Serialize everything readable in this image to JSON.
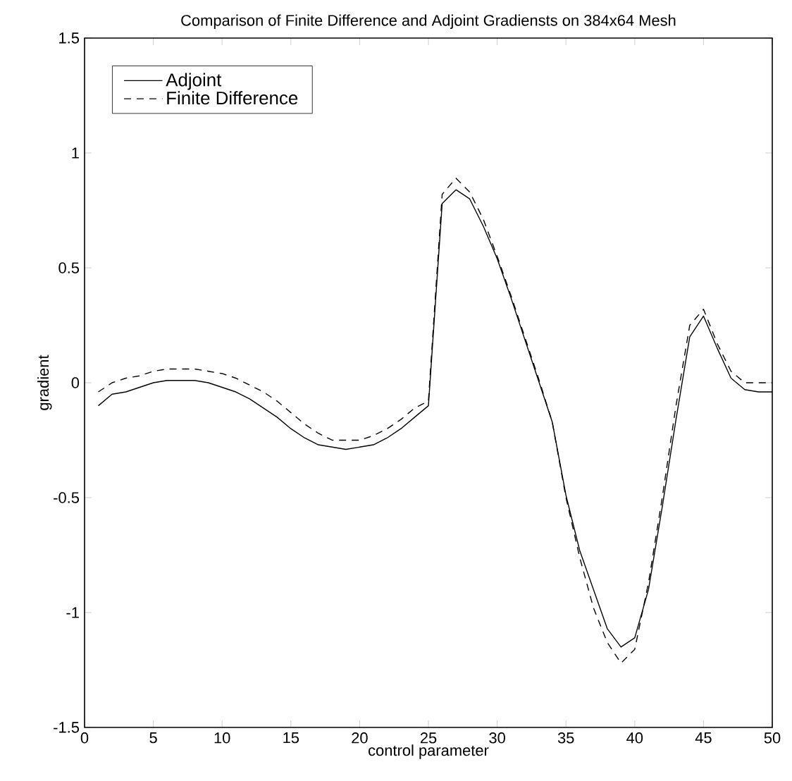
{
  "chart_data": {
    "type": "line",
    "title": "Comparison of Finite Difference and Adjoint Gradiensts on 384x64 Mesh",
    "xlabel": "control parameter",
    "ylabel": "gradient",
    "x": [
      1,
      2,
      3,
      4,
      5,
      6,
      7,
      8,
      9,
      10,
      11,
      12,
      13,
      14,
      15,
      16,
      17,
      18,
      19,
      20,
      21,
      22,
      23,
      24,
      25,
      26,
      27,
      28,
      29,
      30,
      31,
      32,
      33,
      34,
      35,
      36,
      37,
      38,
      39,
      40,
      41,
      42,
      43,
      44,
      45,
      46,
      47,
      48,
      49,
      50
    ],
    "series": [
      {
        "name": "Adjoint",
        "color": "#000000",
        "line_style": "solid",
        "values": [
          -0.1,
          -0.05,
          -0.04,
          -0.02,
          0,
          0.01,
          0.01,
          0.01,
          0,
          -0.02,
          -0.04,
          -0.07,
          -0.11,
          -0.15,
          -0.2,
          -0.24,
          -0.27,
          -0.28,
          -0.29,
          -0.28,
          -0.27,
          -0.24,
          -0.2,
          -0.15,
          -0.1,
          0.78,
          0.84,
          0.8,
          0.68,
          0.54,
          0.37,
          0.19,
          0.01,
          -0.17,
          -0.49,
          -0.73,
          -0.9,
          -1.07,
          -1.15,
          -1.11,
          -0.9,
          -0.54,
          -0.16,
          0.2,
          0.29,
          0.15,
          0.02,
          -0.03,
          -0.04,
          -0.04
        ]
      },
      {
        "name": "Finite Difference",
        "color": "#000000",
        "line_style": "dashed",
        "values": [
          -0.04,
          0,
          0.02,
          0.03,
          0.05,
          0.06,
          0.06,
          0.06,
          0.05,
          0.04,
          0.02,
          -0.01,
          -0.04,
          -0.08,
          -0.13,
          -0.18,
          -0.22,
          -0.25,
          -0.25,
          -0.25,
          -0.23,
          -0.2,
          -0.16,
          -0.11,
          -0.08,
          0.82,
          0.89,
          0.83,
          0.71,
          0.55,
          0.38,
          0.2,
          0.02,
          -0.17,
          -0.5,
          -0.76,
          -0.98,
          -1.13,
          -1.22,
          -1.16,
          -0.87,
          -0.5,
          -0.1,
          0.25,
          0.32,
          0.17,
          0.05,
          0,
          0,
          0
        ]
      }
    ],
    "xlim": [
      0,
      50
    ],
    "ylim": [
      -1.5,
      1.5
    ],
    "xticks": [
      0,
      5,
      10,
      15,
      20,
      25,
      30,
      35,
      40,
      45,
      50
    ],
    "yticks": [
      -1.5,
      -1,
      -0.5,
      0,
      0.5,
      1,
      1.5
    ],
    "grid": false,
    "legend": "top left",
    "marker": "none"
  }
}
